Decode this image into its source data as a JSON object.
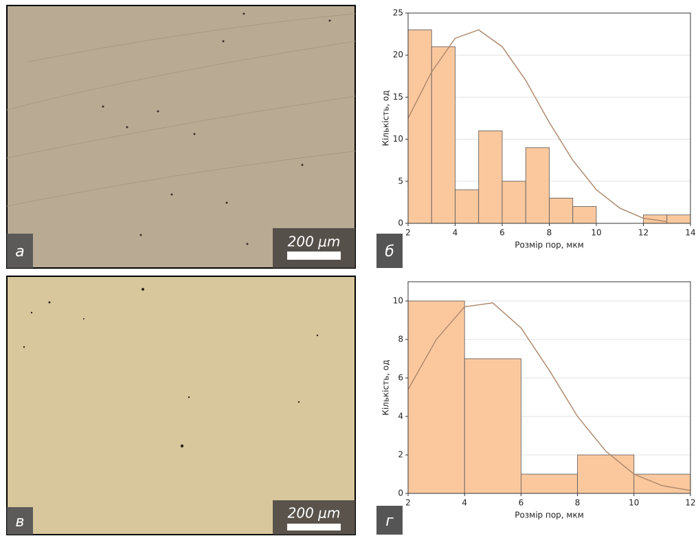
{
  "panels": [
    {
      "label": "а",
      "scale_bar": "200 μm"
    },
    {
      "label": "б"
    },
    {
      "label": "в",
      "scale_bar": "200 μm"
    },
    {
      "label": "г"
    }
  ],
  "chart_data": [
    {
      "type": "histogram",
      "xlabel": "Розмір пор, мкм",
      "ylabel": "Кількість, од",
      "bins": [
        2,
        3,
        4,
        5,
        6,
        7,
        8,
        9,
        10,
        11,
        12,
        13,
        14
      ],
      "values": [
        23,
        21,
        4,
        11,
        5,
        9,
        3,
        2,
        0,
        0,
        1,
        1
      ],
      "color": "#fbc89e",
      "grid": true,
      "xlim": [
        2,
        14
      ],
      "xticks": [
        2,
        4,
        6,
        8,
        10,
        12,
        14
      ],
      "ylim": [
        0,
        25
      ],
      "yticks": [
        0,
        5,
        10,
        15,
        20,
        25
      ],
      "curve": {
        "color": "#b08a6e",
        "x": [
          2,
          3,
          4,
          5,
          6,
          7,
          8,
          9,
          10,
          11,
          12,
          13
        ],
        "values": [
          12.5,
          18,
          22,
          23,
          21,
          17,
          12,
          7.5,
          4,
          1.8,
          0.6,
          0.2
        ]
      }
    },
    {
      "type": "histogram",
      "xlabel": "Розмір пор, мкм",
      "ylabel": "Кількість, од",
      "bins": [
        2,
        4,
        6,
        8,
        10,
        12
      ],
      "values": [
        10,
        7,
        1,
        2,
        1
      ],
      "color": "#fbc89e",
      "grid": true,
      "xlim": [
        2,
        12
      ],
      "xticks": [
        2,
        4,
        6,
        8,
        10,
        12
      ],
      "ylim": [
        0,
        11
      ],
      "yticks": [
        0,
        2,
        4,
        6,
        8,
        10
      ],
      "curve": {
        "color": "#b08a6e",
        "x": [
          2,
          3,
          4,
          5,
          6,
          7,
          8,
          9,
          10,
          11,
          12
        ],
        "values": [
          5.4,
          8,
          9.7,
          9.9,
          8.6,
          6.4,
          4,
          2.2,
          1,
          0.4,
          0.15
        ]
      }
    }
  ]
}
